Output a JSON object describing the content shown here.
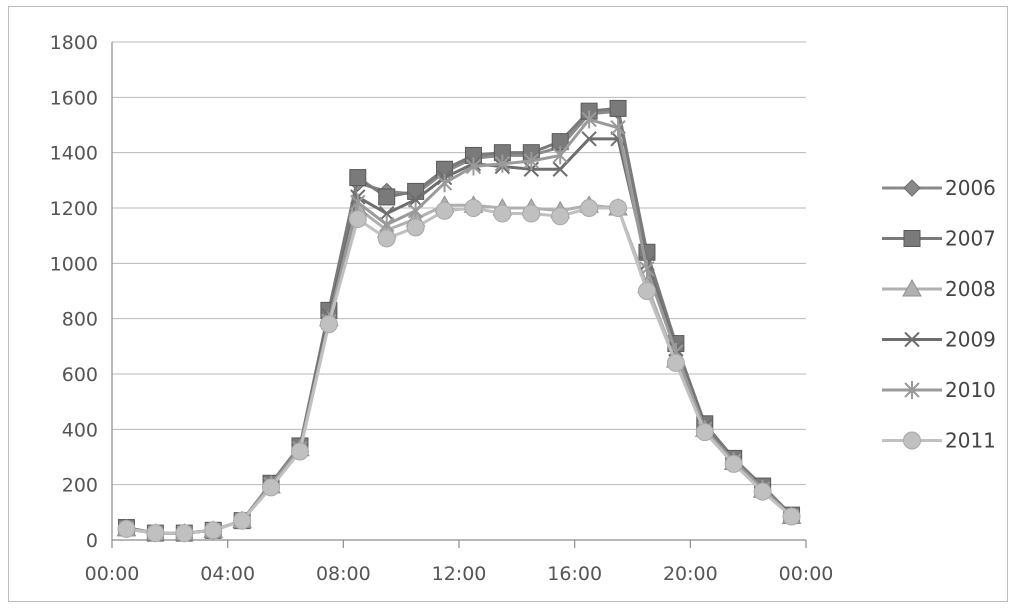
{
  "chart_data": {
    "type": "line",
    "title": "",
    "xlabel": "",
    "ylabel": "",
    "x_tick_labels": [
      "00:00",
      "04:00",
      "08:00",
      "12:00",
      "16:00",
      "20:00",
      "00:00"
    ],
    "x": [
      0,
      1,
      2,
      3,
      4,
      5,
      6,
      7,
      8,
      9,
      10,
      11,
      12,
      13,
      14,
      15,
      16,
      17,
      18,
      19,
      20,
      21,
      22,
      23
    ],
    "xlim": [
      0,
      24
    ],
    "ylim": [
      0,
      1800
    ],
    "y_ticks": [
      0,
      200,
      400,
      600,
      800,
      1000,
      1200,
      1400,
      1600,
      1800
    ],
    "grid": "horizontal",
    "legend_position": "right",
    "series": [
      {
        "name": "2006",
        "color": "#8a8a8a",
        "marker": "diamond",
        "values": [
          40,
          25,
          25,
          35,
          70,
          200,
          330,
          820,
          1290,
          1260,
          1250,
          1330,
          1380,
          1390,
          1390,
          1420,
          1540,
          1550,
          1030,
          700,
          420,
          290,
          190,
          85
        ]
      },
      {
        "name": "2007",
        "color": "#7a7a7a",
        "marker": "square",
        "values": [
          45,
          25,
          25,
          35,
          70,
          205,
          340,
          830,
          1310,
          1240,
          1260,
          1340,
          1390,
          1400,
          1400,
          1440,
          1550,
          1560,
          1040,
          710,
          420,
          295,
          195,
          90
        ]
      },
      {
        "name": "2008",
        "color": "#b0b0b0",
        "marker": "triangle",
        "values": [
          40,
          25,
          25,
          35,
          70,
          195,
          330,
          800,
          1200,
          1120,
          1160,
          1210,
          1210,
          1200,
          1200,
          1190,
          1210,
          1200,
          920,
          650,
          400,
          280,
          180,
          85
        ]
      },
      {
        "name": "2009",
        "color": "#6e6e6e",
        "marker": "x",
        "values": [
          40,
          25,
          25,
          35,
          70,
          200,
          330,
          810,
          1240,
          1180,
          1230,
          1310,
          1360,
          1350,
          1340,
          1340,
          1450,
          1450,
          1000,
          690,
          410,
          285,
          185,
          85
        ]
      },
      {
        "name": "2010",
        "color": "#9a9a9a",
        "marker": "star",
        "values": [
          40,
          25,
          25,
          35,
          70,
          200,
          330,
          790,
          1220,
          1140,
          1190,
          1290,
          1350,
          1360,
          1370,
          1390,
          1520,
          1490,
          980,
          680,
          400,
          285,
          185,
          85
        ]
      },
      {
        "name": "2011",
        "color": "#c0c0c0",
        "marker": "circle",
        "values": [
          40,
          25,
          25,
          35,
          70,
          190,
          320,
          780,
          1160,
          1090,
          1130,
          1190,
          1200,
          1180,
          1180,
          1170,
          1200,
          1200,
          900,
          640,
          390,
          275,
          175,
          85
        ]
      }
    ]
  }
}
